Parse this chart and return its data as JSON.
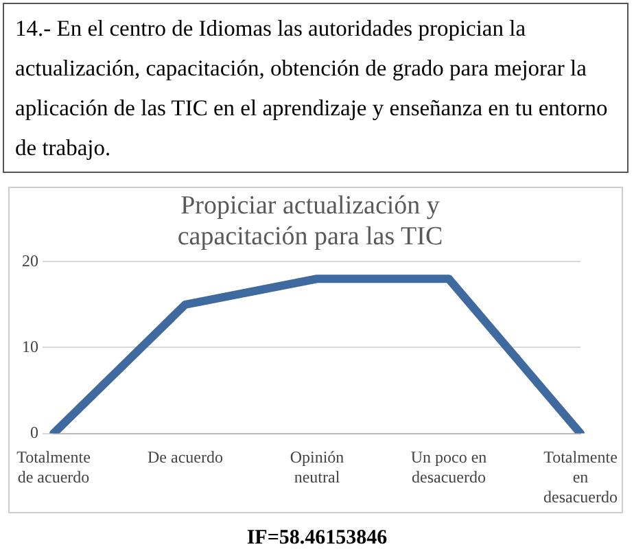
{
  "chart_data": {
    "type": "line",
    "title": "Propiciar actualización y capacitación para las TIC",
    "categories": [
      "Totalmente de acuerdo",
      "De acuerdo",
      "Opinión neutral",
      "Un poco en desacuerdo",
      "Totalmente en desacuerdo"
    ],
    "series": [
      {
        "color": "#3e6aa0",
        "values": [
          0,
          15,
          18,
          18,
          0
        ]
      }
    ],
    "ylim": [
      0,
      20
    ],
    "yticks": [
      0,
      10,
      20
    ],
    "grid": "y",
    "marker": "none",
    "line_style": "solid",
    "annotations": [
      "14.- En el centro de Idiomas las autoridades propician la actualización, capacitación, obtención de grado para mejorar la aplicación de las TIC en el aprendizaje y enseñanza en tu entorno de trabajo.",
      "IF=58.46153846"
    ]
  }
}
